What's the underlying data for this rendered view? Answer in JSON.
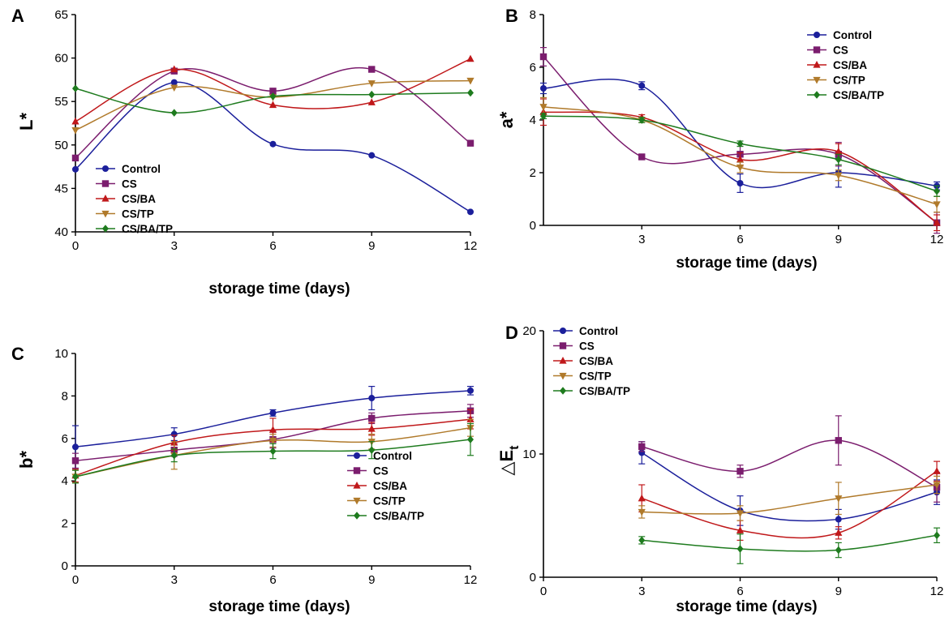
{
  "series_names": [
    "Control",
    "CS",
    "CS/BA",
    "CS/TP",
    "CS/BA/TP"
  ],
  "colors": [
    "#1b1f9b",
    "#7b1d6e",
    "#c0181a",
    "#b07a2b",
    "#1e7b1e"
  ],
  "markers": [
    "circle",
    "square",
    "triangle-up",
    "triangle-down",
    "diamond"
  ],
  "chart_data": [
    {
      "panel": "A",
      "type": "line",
      "ylabel": "L*",
      "xlabel": "storage time (days)",
      "x": [
        0,
        3,
        6,
        9,
        12
      ],
      "xticks": [
        "0",
        "3",
        "6",
        "9",
        "12"
      ],
      "ylim": [
        40,
        65
      ],
      "yticks": [
        "40",
        "45",
        "50",
        "55",
        "60",
        "65"
      ],
      "legend": "bottom-left",
      "series": [
        {
          "name": "Control",
          "values": [
            47.2,
            57.2,
            50.1,
            48.8,
            42.3
          ]
        },
        {
          "name": "CS",
          "values": [
            48.5,
            58.5,
            56.2,
            58.7,
            50.2
          ]
        },
        {
          "name": "CS/BA",
          "values": [
            52.7,
            58.7,
            54.6,
            54.9,
            59.9
          ]
        },
        {
          "name": "CS/TP",
          "values": [
            51.7,
            56.6,
            55.5,
            57.1,
            57.4
          ]
        },
        {
          "name": "CS/BA/TP",
          "values": [
            56.5,
            53.7,
            55.6,
            55.8,
            56.0
          ]
        }
      ]
    },
    {
      "panel": "B",
      "type": "line",
      "ylabel": "a*",
      "xlabel": "storage time (days)",
      "x": [
        0,
        3,
        6,
        9,
        12
      ],
      "xticks": [
        "3",
        "6",
        "9",
        "12"
      ],
      "ylim": [
        0,
        8
      ],
      "yticks": [
        "0",
        "2",
        "4",
        "6",
        "8"
      ],
      "legend": "top-right",
      "series": [
        {
          "name": "Control",
          "values": [
            5.2,
            5.3,
            1.6,
            2.0,
            1.5
          ],
          "errors": [
            0.2,
            0.15,
            0.35,
            0.55,
            0.15
          ]
        },
        {
          "name": "CS",
          "values": [
            6.4,
            2.6,
            2.7,
            2.7,
            0.1
          ],
          "errors": [
            0.35,
            0.1,
            0.3,
            0.45,
            0.4
          ]
        },
        {
          "name": "CS/BA",
          "values": [
            4.3,
            4.1,
            2.5,
            2.8,
            0.1
          ],
          "errors": [
            0.5,
            0.1,
            0.25,
            0.3,
            0.3
          ]
        },
        {
          "name": "CS/TP",
          "values": [
            4.5,
            4.0,
            2.2,
            1.9,
            0.8
          ],
          "errors": [
            0.35,
            0.1,
            0.2,
            0.2,
            0.3
          ]
        },
        {
          "name": "CS/BA/TP",
          "values": [
            4.15,
            4.0,
            3.1,
            2.5,
            1.3
          ],
          "errors": [
            0.1,
            0.1,
            0.1,
            0.2,
            0.2
          ]
        }
      ]
    },
    {
      "panel": "C",
      "type": "line",
      "ylabel": "b*",
      "xlabel": "storage time (days)",
      "x": [
        0,
        3,
        6,
        9,
        12
      ],
      "xticks": [
        "0",
        "3",
        "6",
        "9",
        "12"
      ],
      "ylim": [
        0,
        10
      ],
      "yticks": [
        "0",
        "2",
        "4",
        "6",
        "8",
        "10"
      ],
      "legend": "bottom-right",
      "series": [
        {
          "name": "Control",
          "values": [
            5.6,
            6.2,
            7.2,
            7.9,
            8.25
          ],
          "errors": [
            1.0,
            0.3,
            0.15,
            0.55,
            0.2
          ]
        },
        {
          "name": "CS",
          "values": [
            4.95,
            5.45,
            5.95,
            6.95,
            7.3
          ],
          "errors": [
            0.35,
            0.3,
            0.4,
            0.25,
            0.3
          ]
        },
        {
          "name": "CS/BA",
          "values": [
            4.25,
            5.8,
            6.4,
            6.45,
            6.9
          ],
          "errors": [
            0.3,
            0.35,
            0.55,
            0.3,
            0.45
          ]
        },
        {
          "name": "CS/TP",
          "values": [
            4.2,
            5.2,
            5.9,
            5.85,
            6.5
          ],
          "errors": [
            0.3,
            0.65,
            0.3,
            0.35,
            0.4
          ]
        },
        {
          "name": "CS/BA/TP",
          "values": [
            4.2,
            5.2,
            5.4,
            5.45,
            5.95
          ],
          "errors": [
            0.3,
            0.3,
            0.35,
            0.4,
            0.75
          ]
        }
      ]
    },
    {
      "panel": "D",
      "type": "line",
      "ylabel": "△E",
      "ylabel_sub": "t",
      "xlabel": "storage time (days)",
      "x": [
        3,
        6,
        9,
        12
      ],
      "xticks": [
        "0",
        "3",
        "6",
        "9",
        "12"
      ],
      "xlim": [
        0,
        12
      ],
      "ylim": [
        0,
        20
      ],
      "yticks": [
        "0",
        "10",
        "20"
      ],
      "legend": "top-left",
      "series": [
        {
          "name": "Control",
          "values": [
            10.1,
            5.4,
            4.7,
            6.9
          ],
          "errors": [
            0.9,
            1.2,
            0.8,
            1.0
          ]
        },
        {
          "name": "CS",
          "values": [
            10.6,
            8.6,
            11.1,
            7.3
          ],
          "errors": [
            0.4,
            0.5,
            2.0,
            1.2
          ]
        },
        {
          "name": "CS/BA",
          "values": [
            6.4,
            3.8,
            3.6,
            8.6
          ],
          "errors": [
            1.1,
            0.8,
            0.5,
            0.8
          ]
        },
        {
          "name": "CS/TP",
          "values": [
            5.3,
            5.2,
            6.4,
            7.5
          ],
          "errors": [
            0.5,
            0.6,
            1.3,
            0.7
          ]
        },
        {
          "name": "CS/BA/TP",
          "values": [
            3.0,
            2.3,
            2.2,
            3.4
          ],
          "errors": [
            0.3,
            1.2,
            0.6,
            0.6
          ]
        }
      ]
    }
  ]
}
